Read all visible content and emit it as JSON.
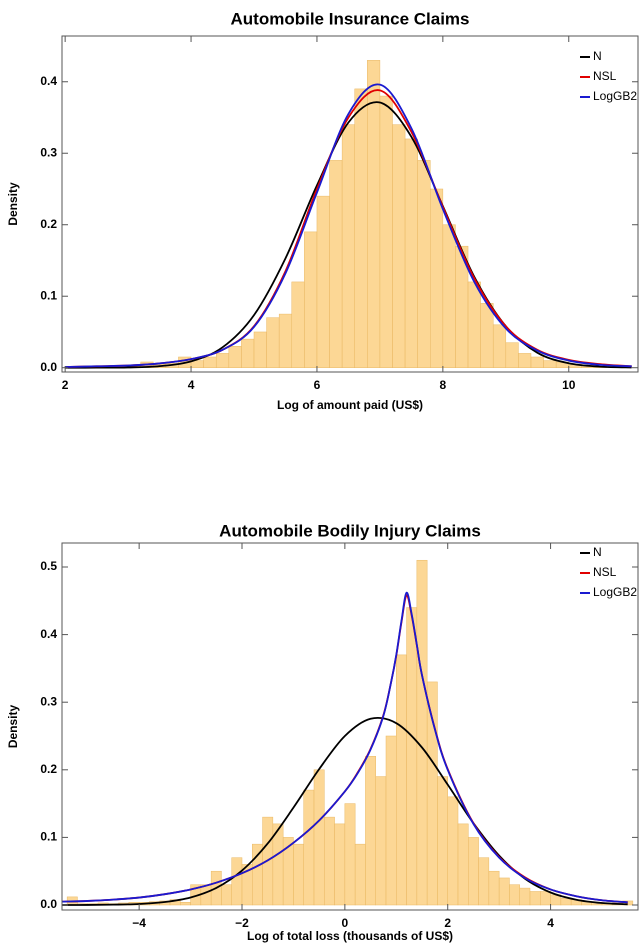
{
  "chart_data": [
    {
      "type": "histogram",
      "title": "Automobile Insurance Claims",
      "xlabel": "Log of amount paid (US$)",
      "ylabel": "Density",
      "color": "#fcd082",
      "bins": [
        3.0,
        3.2,
        3.4,
        3.6,
        3.8,
        4.0,
        4.2,
        4.4,
        4.6,
        4.8,
        5.0,
        5.2,
        5.4,
        5.6,
        5.8,
        6.0,
        6.2,
        6.4,
        6.6,
        6.8,
        7.0,
        7.2,
        7.4,
        7.6,
        7.8,
        8.0,
        8.2,
        8.4,
        8.6,
        8.8,
        9.0,
        9.2,
        9.4,
        9.6,
        9.8,
        10.0,
        10.2,
        10.4,
        10.6
      ],
      "values": [
        0.002,
        0.008,
        0.005,
        0.006,
        0.015,
        0.01,
        0.015,
        0.02,
        0.03,
        0.04,
        0.05,
        0.07,
        0.075,
        0.12,
        0.19,
        0.24,
        0.29,
        0.34,
        0.39,
        0.43,
        0.38,
        0.34,
        0.32,
        0.29,
        0.25,
        0.2,
        0.17,
        0.12,
        0.09,
        0.06,
        0.035,
        0.02,
        0.015,
        0.01,
        0.008,
        0.005,
        0.003,
        0.002
      ],
      "series": [
        {
          "name": "N",
          "color": "#000000",
          "x": [
            2,
            2.5,
            3,
            3.5,
            4,
            4.5,
            5,
            5.5,
            6,
            6.5,
            7,
            7.5,
            8,
            8.5,
            9,
            9.5,
            10,
            10.5,
            11
          ],
          "values": [
            0.0,
            0.0001,
            0.0004,
            0.0022,
            0.0089,
            0.0285,
            0.0736,
            0.153,
            0.255,
            0.343,
            0.371,
            0.323,
            0.226,
            0.127,
            0.058,
            0.021,
            0.0062,
            0.0015,
            0.0003
          ]
        },
        {
          "name": "NSL",
          "color": "#e00000",
          "x": [
            2,
            2.5,
            3,
            3.5,
            4,
            4.5,
            5,
            5.5,
            6,
            6.5,
            7,
            7.5,
            8,
            8.5,
            9,
            9.5,
            10,
            10.5,
            11
          ],
          "values": [
            0.001,
            0.002,
            0.003,
            0.006,
            0.012,
            0.025,
            0.058,
            0.135,
            0.25,
            0.35,
            0.388,
            0.33,
            0.225,
            0.125,
            0.058,
            0.025,
            0.011,
            0.005,
            0.002
          ]
        },
        {
          "name": "LogGB2",
          "color": "#1a1ad0",
          "x": [
            2,
            2.5,
            3,
            3.5,
            4,
            4.5,
            5,
            5.5,
            6,
            6.5,
            7,
            7.5,
            8,
            8.5,
            9,
            9.5,
            10,
            10.5,
            11
          ],
          "values": [
            0.001,
            0.002,
            0.003,
            0.006,
            0.012,
            0.025,
            0.057,
            0.132,
            0.245,
            0.355,
            0.396,
            0.335,
            0.222,
            0.12,
            0.055,
            0.024,
            0.01,
            0.004,
            0.002
          ]
        }
      ],
      "xlim": [
        1.95,
        11.1
      ],
      "ylim": [
        -0.006,
        0.464
      ],
      "xticks": [
        2,
        4,
        6,
        8,
        10
      ],
      "yticks": [
        {
          "value": 0,
          "label": "0.0"
        },
        0.1,
        0.2,
        0.3,
        0.4
      ],
      "legend": "upper right"
    },
    {
      "type": "histogram",
      "title": "Automobile Bodily Injury Claims",
      "xlabel": "Log of total loss (thousands of US$)",
      "ylabel": "Density",
      "color": "#fcd082",
      "bins": [
        -5.4,
        -5.2,
        -5.0,
        -4.8,
        -4.6,
        -4.4,
        -4.2,
        -4.0,
        -3.8,
        -3.6,
        -3.4,
        -3.2,
        -3.0,
        -2.8,
        -2.6,
        -2.4,
        -2.2,
        -2.0,
        -1.8,
        -1.6,
        -1.4,
        -1.2,
        -1.0,
        -0.8,
        -0.6,
        -0.4,
        -0.2,
        0.0,
        0.2,
        0.4,
        0.6,
        0.8,
        1.0,
        1.2,
        1.4,
        1.6,
        1.8,
        2.0,
        2.2,
        2.4,
        2.6,
        2.8,
        3.0,
        3.2,
        3.4,
        3.6,
        3.8,
        4.0,
        4.2,
        4.4,
        4.6,
        4.8,
        5.0,
        5.2,
        5.4,
        5.6
      ],
      "values": [
        0.012,
        0.002,
        0.002,
        0.003,
        0.002,
        0.003,
        0.004,
        0.004,
        0.005,
        0.006,
        0.008,
        0.004,
        0.03,
        0.03,
        0.05,
        0.03,
        0.07,
        0.06,
        0.09,
        0.13,
        0.12,
        0.1,
        0.09,
        0.17,
        0.2,
        0.13,
        0.12,
        0.15,
        0.09,
        0.22,
        0.19,
        0.25,
        0.37,
        0.44,
        0.51,
        0.33,
        0.19,
        0.16,
        0.12,
        0.1,
        0.07,
        0.05,
        0.04,
        0.03,
        0.025,
        0.02,
        0.02,
        0.015,
        0.01,
        0.008,
        0.005,
        0.004,
        0.003,
        0.003,
        0.006
      ],
      "series": [
        {
          "name": "N",
          "color": "#000000",
          "x": [
            -5.5,
            -5,
            -4.5,
            -4,
            -3.5,
            -3,
            -2.5,
            -2,
            -1.5,
            -1,
            -0.5,
            0,
            0.5,
            1,
            1.5,
            2,
            2.5,
            3,
            3.5,
            4,
            4.5,
            5,
            5.5
          ],
          "values": [
            0.0,
            0.0001,
            0.0005,
            0.0015,
            0.0044,
            0.0111,
            0.0253,
            0.051,
            0.091,
            0.144,
            0.201,
            0.25,
            0.2755,
            0.269,
            0.233,
            0.178,
            0.121,
            0.073,
            0.039,
            0.0185,
            0.0078,
            0.0029,
            0.001
          ]
        },
        {
          "name": "NSL",
          "color": "#e00000",
          "x": [
            -5.5,
            -5,
            -4.5,
            -4,
            -3.5,
            -3,
            -2.5,
            -2,
            -1.5,
            -1,
            -0.5,
            0,
            0.25,
            0.5,
            0.75,
            0.9,
            1.0,
            1.1,
            1.2,
            1.3,
            1.4,
            1.5,
            1.75,
            2,
            2.5,
            3,
            3.5,
            4,
            4.5,
            5,
            5.5
          ],
          "values": [
            0.005,
            0.006,
            0.008,
            0.011,
            0.016,
            0.023,
            0.033,
            0.047,
            0.066,
            0.092,
            0.125,
            0.168,
            0.196,
            0.231,
            0.281,
            0.33,
            0.369,
            0.418,
            0.458,
            0.428,
            0.384,
            0.34,
            0.261,
            0.201,
            0.121,
            0.071,
            0.041,
            0.023,
            0.013,
            0.007,
            0.004
          ]
        },
        {
          "name": "LogGB2",
          "color": "#1a1ad0",
          "x": [
            -5.5,
            -5,
            -4.5,
            -4,
            -3.5,
            -3,
            -2.5,
            -2,
            -1.5,
            -1,
            -0.5,
            0,
            0.25,
            0.5,
            0.75,
            0.9,
            1.0,
            1.1,
            1.2,
            1.3,
            1.4,
            1.5,
            1.75,
            2,
            2.5,
            3,
            3.5,
            4,
            4.5,
            5,
            5.5
          ],
          "values": [
            0.005,
            0.006,
            0.008,
            0.011,
            0.016,
            0.023,
            0.033,
            0.047,
            0.066,
            0.092,
            0.125,
            0.168,
            0.195,
            0.23,
            0.28,
            0.33,
            0.37,
            0.42,
            0.462,
            0.43,
            0.385,
            0.34,
            0.26,
            0.2,
            0.12,
            0.07,
            0.04,
            0.023,
            0.013,
            0.007,
            0.004
          ]
        }
      ],
      "xlim": [
        -5.5,
        5.7
      ],
      "ylim": [
        -0.0074,
        0.5355
      ],
      "xticks": [
        {
          "value": -4,
          "label": "−4"
        },
        {
          "value": -2,
          "label": "−2"
        },
        0,
        2,
        4
      ],
      "yticks": [
        {
          "value": 0,
          "label": "0.0"
        },
        0.1,
        0.2,
        0.3,
        0.4,
        0.5
      ],
      "legend": "upper right"
    }
  ]
}
